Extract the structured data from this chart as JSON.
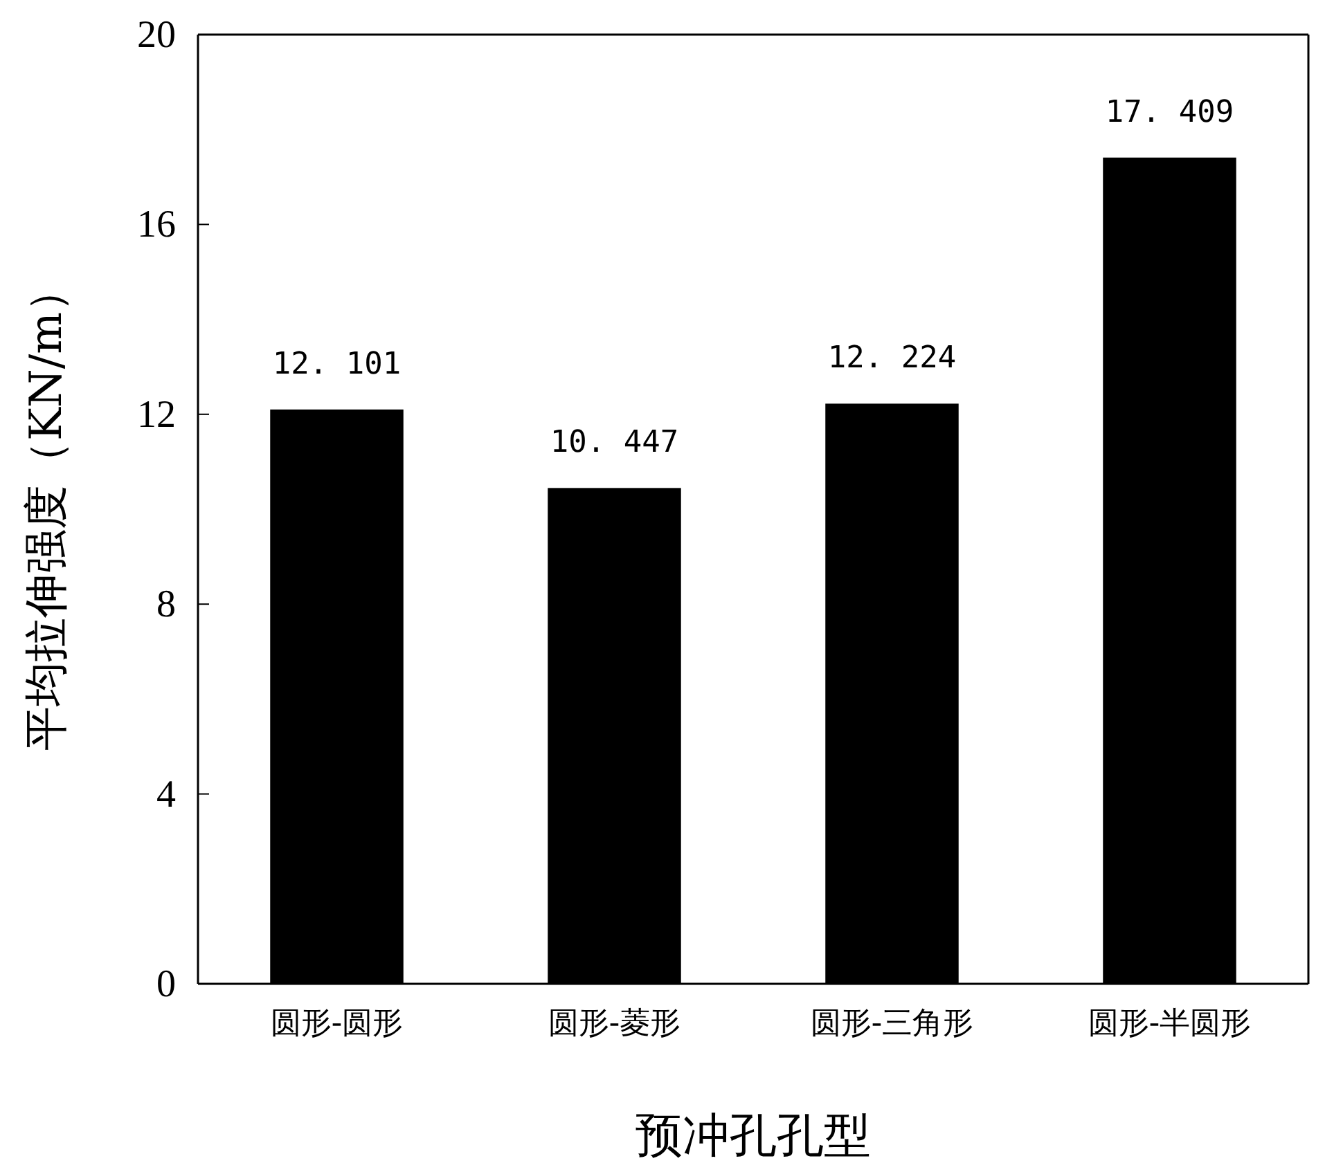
{
  "chart_data": {
    "type": "bar",
    "xlabel": "预冲孔孔型",
    "ylabel": "平均拉伸强度（KN/m）",
    "categories": [
      "圆形-圆形",
      "圆形-菱形",
      "圆形-三角形",
      "圆形-半圆形"
    ],
    "values": [
      12.101,
      10.447,
      12.224,
      17.409
    ],
    "color": "#000000",
    "ylim": [
      0,
      20
    ],
    "yticks": [
      0,
      4,
      8,
      12,
      16,
      20
    ],
    "data_labels": true
  }
}
